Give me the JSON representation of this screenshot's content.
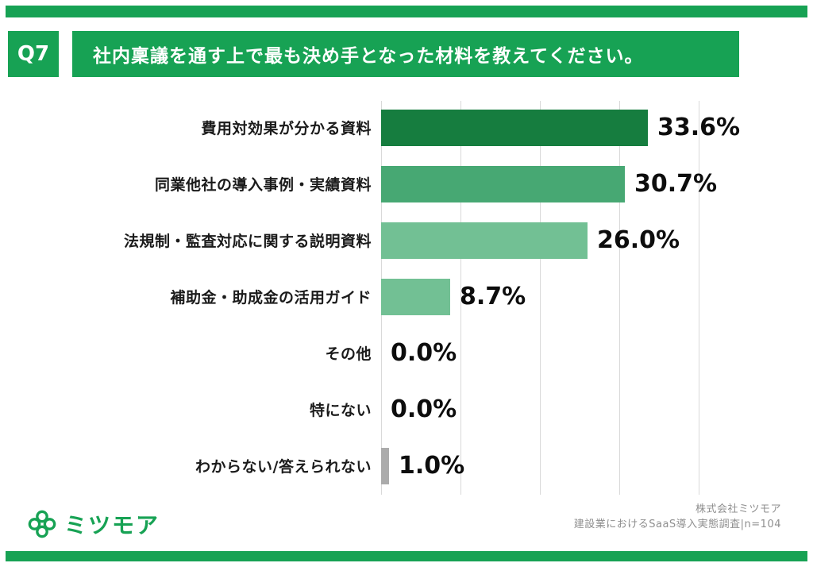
{
  "header": {
    "q_label": "Q7",
    "title": "社内稟議を通す上で最も決め手となった材料を教えてください。"
  },
  "chart_data": {
    "type": "bar",
    "orientation": "horizontal",
    "title": "社内稟議を通す上で最も決め手となった材料を教えてください。",
    "categories": [
      "費用対効果が分かる資料",
      "同業他社の導入事例・実績資料",
      "法規制・監査対応に関する説明資料",
      "補助金・助成金の活用ガイド",
      "その他",
      "特にない",
      "わからない/答えられない"
    ],
    "values": [
      33.6,
      30.7,
      26.0,
      8.7,
      0.0,
      0.0,
      1.0
    ],
    "value_labels": [
      "33.6%",
      "30.7%",
      "26.0%",
      "8.7%",
      "0.0%",
      "0.0%",
      "1.0%"
    ],
    "bar_colors": [
      "#167D3F",
      "#47A873",
      "#72C094",
      "#72C094",
      null,
      null,
      "#ABABAB"
    ],
    "xlim": [
      0,
      40
    ],
    "gridline_interval": 10,
    "grid": true,
    "legend": false
  },
  "footer": {
    "brand_name": "ミツモア",
    "source_line1": "株式会社ミツモア",
    "source_line2": "建設業におけるSaaS導入実態調査|n=104"
  },
  "colors": {
    "brand_green": "#17A254",
    "grid_gray": "#d9d9d9",
    "answer_gray_bar": "#ABABAB"
  }
}
